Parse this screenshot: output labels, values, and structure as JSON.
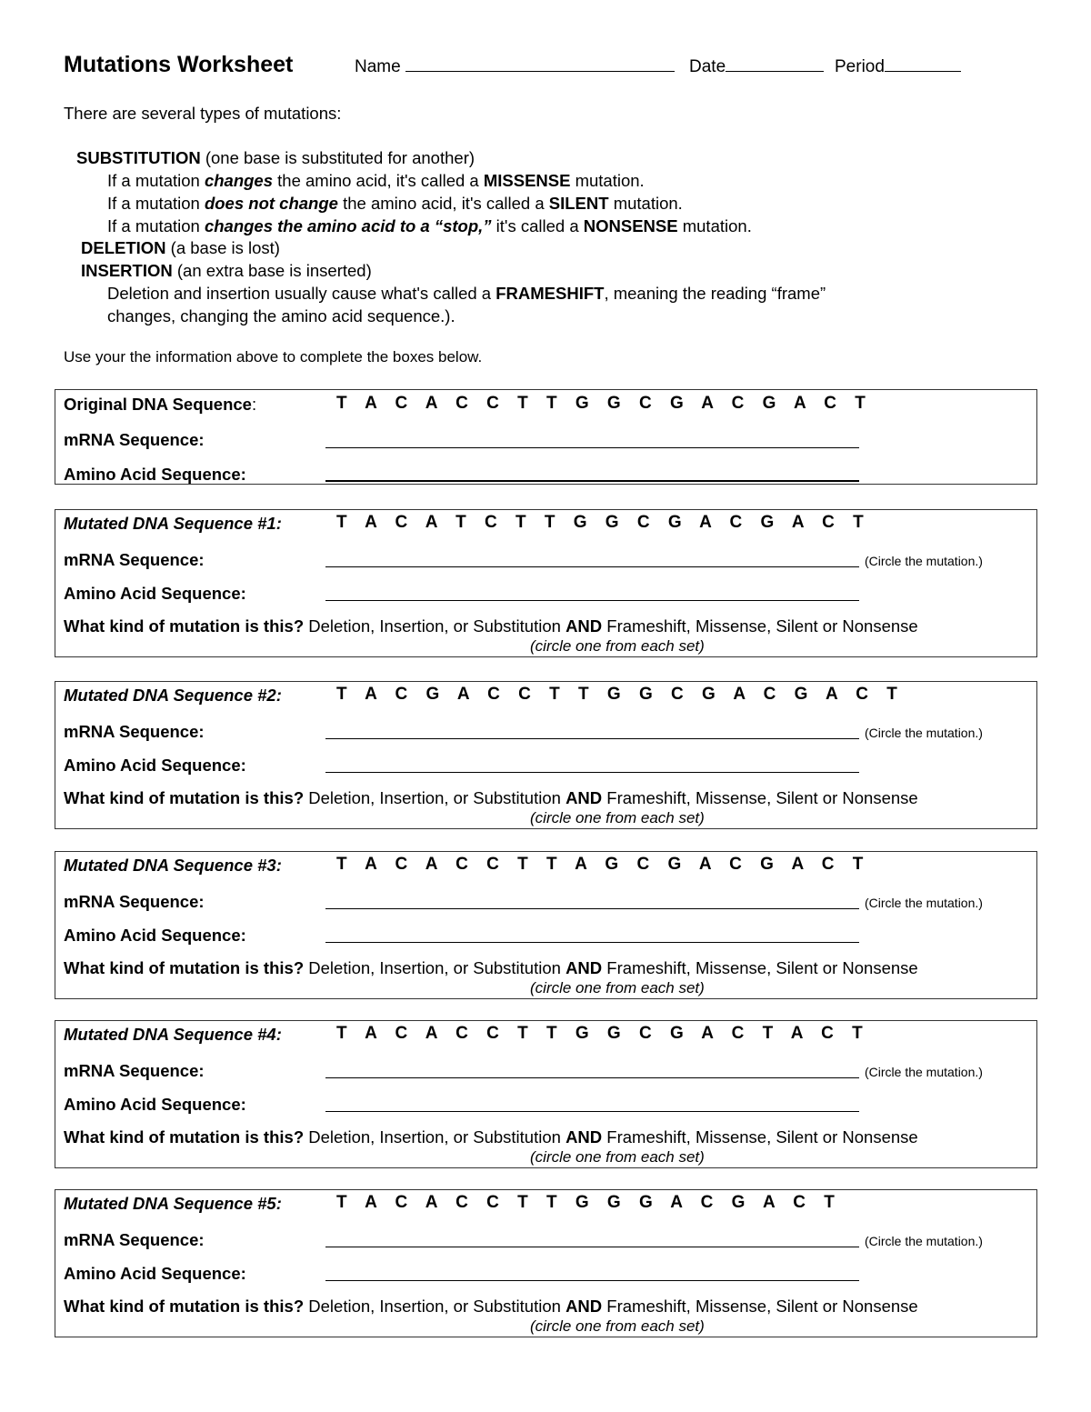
{
  "header": {
    "title": "Mutations Worksheet",
    "name_label": "Name",
    "date_label": "Date",
    "period_label": "Period"
  },
  "intro": {
    "lead": "There are several types of mutations:",
    "substitution": {
      "term": "SUBSTITUTION",
      "desc": " (one base is substituted for another)"
    },
    "missense": {
      "a": "If a mutation ",
      "b": "changes",
      "c": " the amino acid, it's called a ",
      "d": "MISSENSE",
      "e": " mutation."
    },
    "silent": {
      "a": "If a mutation ",
      "b": "does not change",
      "c": " the amino acid, it's called a ",
      "d": "SILENT",
      "e": " mutation."
    },
    "nonsense": {
      "a": "If a mutation ",
      "b": "changes the amino acid to a “stop,”",
      "c": " it's called a ",
      "d": "NONSENSE",
      "e": " mutation."
    },
    "deletion": {
      "term": "DELETION",
      "desc": " (a base is lost)"
    },
    "insertion": {
      "term": "INSERTION",
      "desc": " (an extra base is inserted)"
    },
    "frameshift": {
      "a": "Deletion and insertion usually cause what's called a ",
      "b": "FRAMESHIFT",
      "c": ", meaning the reading “frame”"
    },
    "frameshift2": "changes, changing the amino acid sequence.).",
    "instructions": "Use your the information above to complete the boxes below."
  },
  "original": {
    "label": "Original DNA Sequence",
    "colon": ":",
    "sequence": "T A C A C C T T G G C G A C G A C T",
    "mrna_label": "mRNA Sequence:",
    "amino_label": "Amino Acid Sequence:"
  },
  "common": {
    "mrna_label": "mRNA Sequence:",
    "amino_label": "Amino Acid Sequence:",
    "circle_note": "(Circle the mutation.)",
    "question": "What kind of mutation is this?",
    "options_a": " Deletion, Insertion, or Substitution ",
    "and": "AND",
    "options_b": " Frameshift, Missense, Silent or Nonsense",
    "circle_set": "(circle one from each set)"
  },
  "mutated": [
    {
      "label": "Mutated DNA Sequence #1:",
      "sequence": "T A C A T C T T G G C G A C G A C T"
    },
    {
      "label": "Mutated DNA Sequence #2:",
      "sequence": "T A C G A C C T T G G C G A C G A C T"
    },
    {
      "label": "Mutated DNA Sequence #3:",
      "sequence": "T A C A C C T T A G C G A C G A C T"
    },
    {
      "label": "Mutated DNA Sequence #4:",
      "sequence": "T A C A C C T T G G C G A C T A C T"
    },
    {
      "label": "Mutated DNA Sequence #5:",
      "sequence": "T A C A C C T T G G G A C G A C T"
    }
  ]
}
